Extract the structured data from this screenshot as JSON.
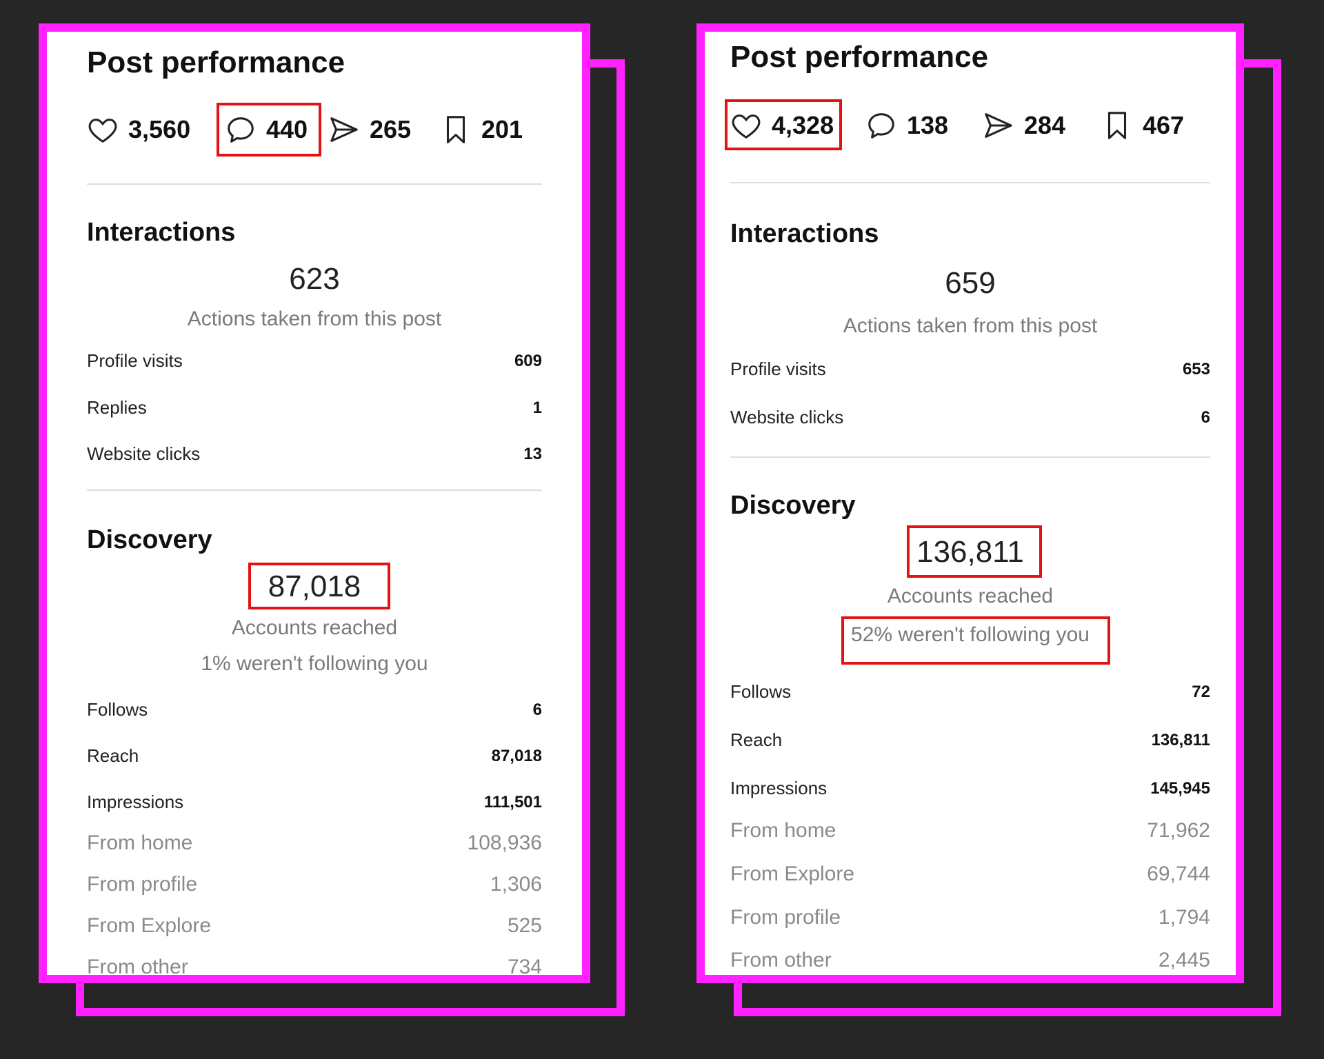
{
  "accent_color": "#ff21ff",
  "highlight_color": "#e41313",
  "left": {
    "title": "Post performance",
    "stats": {
      "likes": "3,560",
      "comments": "440",
      "shares": "265",
      "saves": "201"
    },
    "interactions": {
      "heading": "Interactions",
      "total": "623",
      "caption": "Actions taken from this post",
      "rows": [
        {
          "label": "Profile visits",
          "value": "609"
        },
        {
          "label": "Replies",
          "value": "1"
        },
        {
          "label": "Website clicks",
          "value": "13"
        }
      ]
    },
    "discovery": {
      "heading": "Discovery",
      "total": "87,018",
      "caption": "Accounts reached",
      "follow_note": "1% weren't following you",
      "rows": [
        {
          "label": "Follows",
          "value": "6"
        },
        {
          "label": "Reach",
          "value": "87,018"
        },
        {
          "label": "Impressions",
          "value": "111,501"
        }
      ],
      "sub_rows": [
        {
          "label": "From home",
          "value": "108,936"
        },
        {
          "label": "From profile",
          "value": "1,306"
        },
        {
          "label": "From Explore",
          "value": "525"
        },
        {
          "label": "From other",
          "value": "734"
        }
      ]
    }
  },
  "right": {
    "title": "Post performance",
    "stats": {
      "likes": "4,328",
      "comments": "138",
      "shares": "284",
      "saves": "467"
    },
    "interactions": {
      "heading": "Interactions",
      "total": "659",
      "caption": "Actions taken from this post",
      "rows": [
        {
          "label": "Profile visits",
          "value": "653"
        },
        {
          "label": "Website clicks",
          "value": "6"
        }
      ]
    },
    "discovery": {
      "heading": "Discovery",
      "total": "136,811",
      "caption": "Accounts reached",
      "follow_note": "52% weren't following you",
      "rows": [
        {
          "label": "Follows",
          "value": "72"
        },
        {
          "label": "Reach",
          "value": "136,811"
        },
        {
          "label": "Impressions",
          "value": "145,945"
        }
      ],
      "sub_rows": [
        {
          "label": "From home",
          "value": "71,962"
        },
        {
          "label": "From Explore",
          "value": "69,744"
        },
        {
          "label": "From profile",
          "value": "1,794"
        },
        {
          "label": "From other",
          "value": "2,445"
        }
      ]
    }
  }
}
